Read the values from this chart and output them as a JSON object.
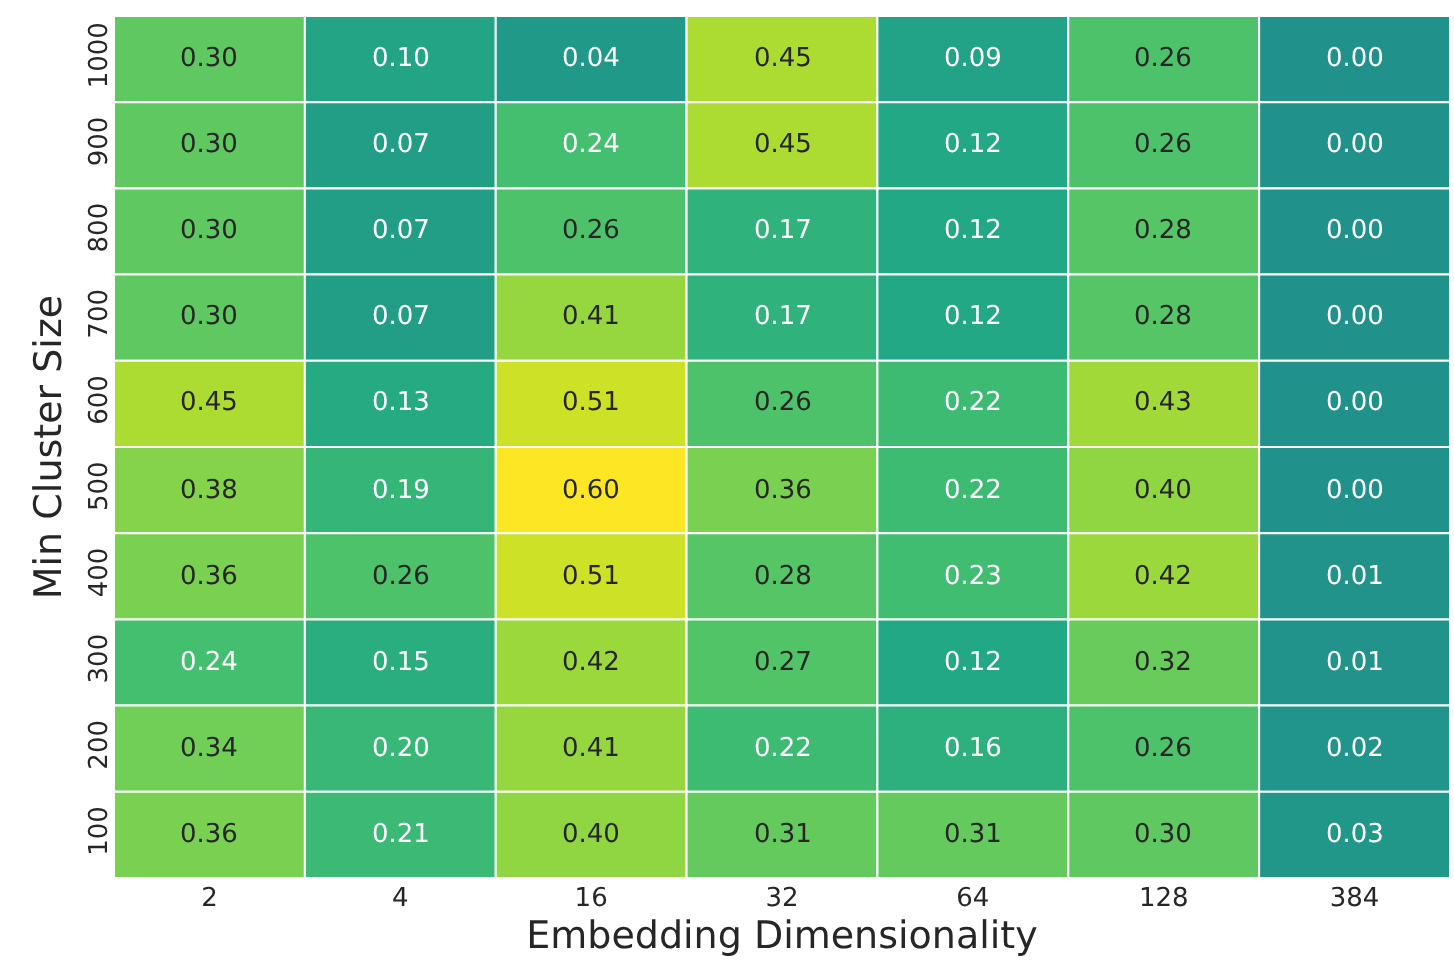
{
  "chart_data": {
    "type": "heatmap",
    "xlabel": "Embedding Dimensionality",
    "ylabel": "Min Cluster Size",
    "categories": [
      "2",
      "4",
      "16",
      "32",
      "64",
      "128",
      "384"
    ],
    "y_categories": [
      "1000",
      "900",
      "800",
      "700",
      "600",
      "500",
      "400",
      "300",
      "200",
      "100"
    ],
    "cells": [
      [
        0.3,
        0.1,
        0.04,
        0.45,
        0.09,
        0.26,
        0.0
      ],
      [
        0.3,
        0.07,
        0.24,
        0.45,
        0.12,
        0.26,
        0.0
      ],
      [
        0.3,
        0.07,
        0.26,
        0.17,
        0.12,
        0.28,
        0.0
      ],
      [
        0.3,
        0.07,
        0.41,
        0.17,
        0.12,
        0.28,
        0.0
      ],
      [
        0.45,
        0.13,
        0.51,
        0.26,
        0.22,
        0.43,
        0.0
      ],
      [
        0.38,
        0.19,
        0.6,
        0.36,
        0.22,
        0.4,
        0.0
      ],
      [
        0.36,
        0.26,
        0.51,
        0.28,
        0.23,
        0.42,
        0.01
      ],
      [
        0.24,
        0.15,
        0.42,
        0.27,
        0.12,
        0.32,
        0.01
      ],
      [
        0.34,
        0.2,
        0.41,
        0.22,
        0.16,
        0.26,
        0.02
      ],
      [
        0.36,
        0.21,
        0.4,
        0.31,
        0.31,
        0.3,
        0.03
      ]
    ],
    "cell_labels": [
      [
        "0.30",
        "0.10",
        "0.04",
        "0.45",
        "0.09",
        "0.26",
        "0.00"
      ],
      [
        "0.30",
        "0.07",
        "0.24",
        "0.45",
        "0.12",
        "0.26",
        "0.00"
      ],
      [
        "0.30",
        "0.07",
        "0.26",
        "0.17",
        "0.12",
        "0.28",
        "0.00"
      ],
      [
        "0.30",
        "0.07",
        "0.41",
        "0.17",
        "0.12",
        "0.28",
        "0.00"
      ],
      [
        "0.45",
        "0.13",
        "0.51",
        "0.26",
        "0.22",
        "0.43",
        "0.00"
      ],
      [
        "0.38",
        "0.19",
        "0.60",
        "0.36",
        "0.22",
        "0.40",
        "0.00"
      ],
      [
        "0.36",
        "0.26",
        "0.51",
        "0.28",
        "0.23",
        "0.42",
        "0.01"
      ],
      [
        "0.24",
        "0.15",
        "0.42",
        "0.27",
        "0.12",
        "0.32",
        "0.01"
      ],
      [
        "0.34",
        "0.20",
        "0.41",
        "0.22",
        "0.16",
        "0.26",
        "0.02"
      ],
      [
        "0.36",
        "0.21",
        "0.40",
        "0.31",
        "0.31",
        "0.30",
        "0.03"
      ]
    ]
  }
}
